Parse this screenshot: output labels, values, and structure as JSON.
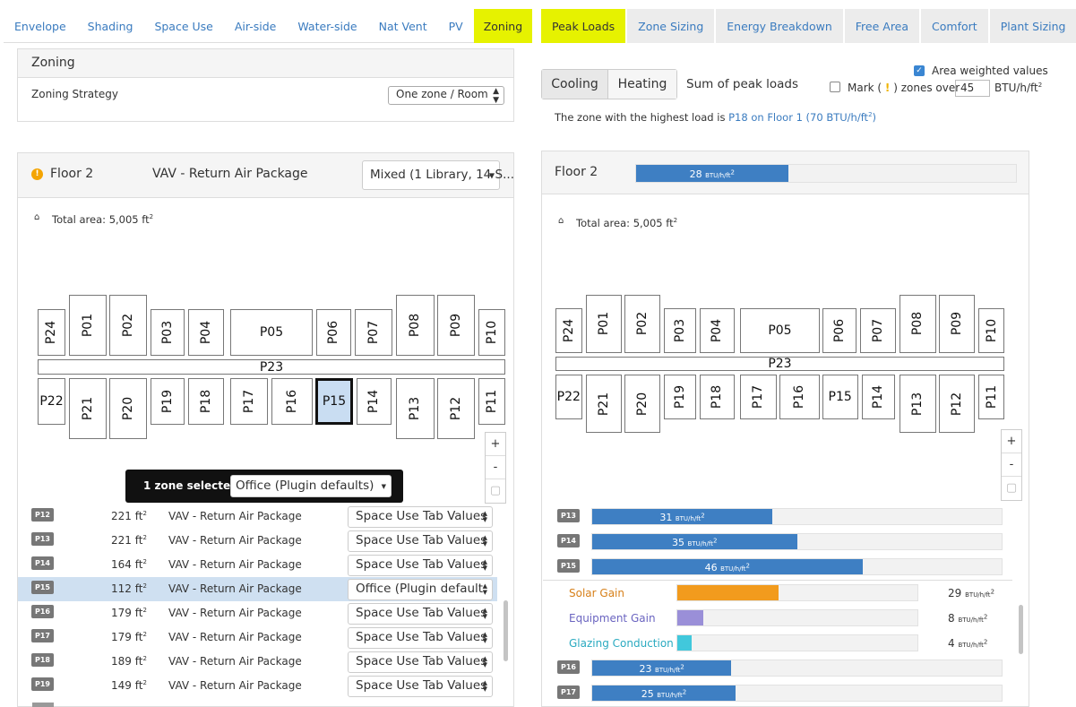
{
  "left_tabs": [
    "Envelope",
    "Shading",
    "Space Use",
    "Air-side",
    "Water-side",
    "Nat Vent",
    "PV",
    "Zoning"
  ],
  "right_tabs": [
    "Peak Loads",
    "Zone Sizing",
    "Energy Breakdown",
    "Free Area",
    "Comfort",
    "Plant Sizing"
  ],
  "zoning": {
    "title": "Zoning",
    "strategy_label": "Zoning Strategy",
    "strategy_value": "One zone / Room"
  },
  "floor_left": {
    "title": "Floor 2",
    "system": "VAV - Return Air Package",
    "mix_select": "Mixed (1 Library, 14 S...",
    "area": "Total area: 5,005 ft",
    "area_sup": "2",
    "selection_count": "1 zone selected",
    "selection_value": "Office (Plugin defaults)"
  },
  "zones_top": [
    "P24",
    "P01",
    "P02",
    "P03",
    "P04",
    "P05",
    "P06",
    "P07",
    "P08",
    "P09",
    "P10"
  ],
  "zones_bottom": [
    "P22",
    "P21",
    "P20",
    "P19",
    "P18",
    "P17",
    "P16",
    "P15",
    "P14",
    "P13",
    "P12",
    "P11"
  ],
  "corridor": "P23",
  "zoom": {
    "plus": "+",
    "minus": "-",
    "reset": "▢"
  },
  "zone_rows": [
    {
      "id": "P12",
      "area": "221 ft",
      "sup": "2",
      "system": "VAV - Return Air Package",
      "use": "Space Use Tab Values"
    },
    {
      "id": "P13",
      "area": "221 ft",
      "sup": "2",
      "system": "VAV - Return Air Package",
      "use": "Space Use Tab Values"
    },
    {
      "id": "P14",
      "area": "164 ft",
      "sup": "2",
      "system": "VAV - Return Air Package",
      "use": "Space Use Tab Values"
    },
    {
      "id": "P15",
      "area": "112 ft",
      "sup": "2",
      "system": "VAV - Return Air Package",
      "use": "Office (Plugin default"
    },
    {
      "id": "P16",
      "area": "179 ft",
      "sup": "2",
      "system": "VAV - Return Air Package",
      "use": "Space Use Tab Values"
    },
    {
      "id": "P17",
      "area": "179 ft",
      "sup": "2",
      "system": "VAV - Return Air Package",
      "use": "Space Use Tab Values"
    },
    {
      "id": "P18",
      "area": "189 ft",
      "sup": "2",
      "system": "VAV - Return Air Package",
      "use": "Space Use Tab Values"
    },
    {
      "id": "P19",
      "area": "149 ft",
      "sup": "2",
      "system": "VAV - Return Air Package",
      "use": "Space Use Tab Values"
    }
  ],
  "peak": {
    "cooling": "Cooling",
    "heating": "Heating",
    "sum_label": "Sum of peak loads",
    "area_weighted": "Area weighted values",
    "mark_label": "Mark (",
    "mark_icon": "!",
    "mark_label2": ") zones over",
    "mark_value": "45",
    "mark_unit": "BTU/h/ft",
    "highest_prefix": "The zone with the highest load is ",
    "highest_link": "P18 on Floor 1 (70 BTU/h/ft",
    "highest_link_end": ")",
    "floor_title": "Floor 2",
    "floor_value": "28",
    "floor_fraction": 0.4,
    "unit": "BTU/h/ft",
    "unit_sup": "2",
    "area": "Total area: 5,005 ft"
  },
  "load_rows": [
    {
      "id": "P13",
      "value": "31",
      "fraction": 0.44
    },
    {
      "id": "P14",
      "value": "35",
      "fraction": 0.5
    },
    {
      "id": "P15",
      "value": "46",
      "fraction": 0.66
    }
  ],
  "breakdown": [
    {
      "label": "Solar Gain",
      "value": "29",
      "fraction": 0.42,
      "color": "#f29b1d",
      "text_color": "#d7801a"
    },
    {
      "label": "Equipment Gain",
      "value": "8",
      "fraction": 0.11,
      "color": "#9a8fd8",
      "text_color": "#6a64c0"
    },
    {
      "label": "Glazing Conduction",
      "value": "4",
      "fraction": 0.06,
      "color": "#41c8dc",
      "text_color": "#2aaac0"
    }
  ],
  "load_rows2": [
    {
      "id": "P16",
      "value": "23",
      "fraction": 0.34
    },
    {
      "id": "P17",
      "value": "25",
      "fraction": 0.35
    }
  ]
}
